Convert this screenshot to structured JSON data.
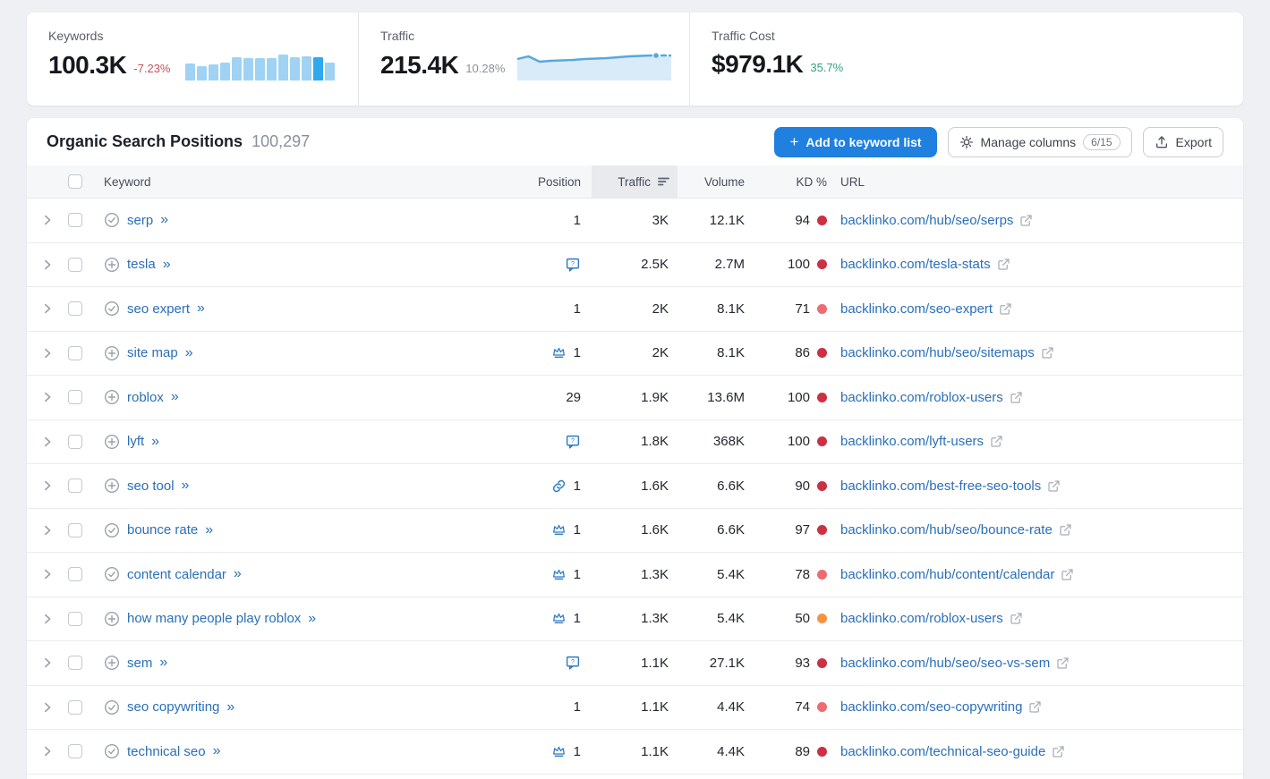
{
  "stats": {
    "keywords": {
      "label": "Keywords",
      "value": "100.3K",
      "change": "-7.23%",
      "chart_data": {
        "type": "bar",
        "values": [
          55,
          46,
          52,
          58,
          76,
          73,
          73,
          73,
          86,
          76,
          79,
          76,
          60
        ],
        "highlight_index": 11,
        "bar_color": "#9fd2f3",
        "highlight_color": "#2fa8ef"
      }
    },
    "traffic": {
      "label": "Traffic",
      "value": "215.4K",
      "change": "10.28%",
      "chart_data": {
        "type": "line",
        "values": [
          10,
          7,
          13,
          12,
          11.5,
          11,
          10,
          9.5,
          9,
          8,
          7,
          6.5,
          6
        ],
        "line_color": "#57a8de",
        "area_color": "#d9ebf8"
      }
    },
    "traffic_cost": {
      "label": "Traffic Cost",
      "value": "$979.1K",
      "change": "35.7%"
    }
  },
  "table": {
    "title": "Organic Search Positions",
    "count": "100,297",
    "buttons": {
      "add_label": "Add to keyword list",
      "add_plus": "+",
      "manage_label": "Manage columns",
      "manage_badge": "6/15",
      "export_label": "Export"
    },
    "columns": {
      "keyword": "Keyword",
      "position": "Position",
      "traffic": "Traffic",
      "volume": "Volume",
      "kd": "KD %",
      "url": "URL"
    },
    "rows": [
      {
        "keyword": "serp",
        "status_icon": "check-circle",
        "feature_icon": "",
        "position": "1",
        "traffic": "3K",
        "volume": "12.1K",
        "kd": "94",
        "kd_color": "#cb3043",
        "url": "backlinko.com/hub/seo/serps"
      },
      {
        "keyword": "tesla",
        "status_icon": "plus-circle",
        "feature_icon": "question-bubble",
        "position": "",
        "traffic": "2.5K",
        "volume": "2.7M",
        "kd": "100",
        "kd_color": "#cb3043",
        "url": "backlinko.com/tesla-stats"
      },
      {
        "keyword": "seo expert",
        "status_icon": "check-circle",
        "feature_icon": "",
        "position": "1",
        "traffic": "2K",
        "volume": "8.1K",
        "kd": "71",
        "kd_color": "#ee6b71",
        "url": "backlinko.com/seo-expert"
      },
      {
        "keyword": "site map",
        "status_icon": "plus-circle",
        "feature_icon": "crown",
        "position": "1",
        "traffic": "2K",
        "volume": "8.1K",
        "kd": "86",
        "kd_color": "#cb3043",
        "url": "backlinko.com/hub/seo/sitemaps"
      },
      {
        "keyword": "roblox",
        "status_icon": "plus-circle",
        "feature_icon": "",
        "position": "29",
        "traffic": "1.9K",
        "volume": "13.6M",
        "kd": "100",
        "kd_color": "#cb3043",
        "url": "backlinko.com/roblox-users"
      },
      {
        "keyword": "lyft",
        "status_icon": "plus-circle",
        "feature_icon": "question-bubble",
        "position": "",
        "traffic": "1.8K",
        "volume": "368K",
        "kd": "100",
        "kd_color": "#cb3043",
        "url": "backlinko.com/lyft-users"
      },
      {
        "keyword": "seo tool",
        "status_icon": "plus-circle",
        "feature_icon": "link",
        "position": "1",
        "traffic": "1.6K",
        "volume": "6.6K",
        "kd": "90",
        "kd_color": "#cb3043",
        "url": "backlinko.com/best-free-seo-tools"
      },
      {
        "keyword": "bounce rate",
        "status_icon": "check-circle",
        "feature_icon": "crown",
        "position": "1",
        "traffic": "1.6K",
        "volume": "6.6K",
        "kd": "97",
        "kd_color": "#cb3043",
        "url": "backlinko.com/hub/seo/bounce-rate"
      },
      {
        "keyword": "content calendar",
        "status_icon": "check-circle",
        "feature_icon": "crown",
        "position": "1",
        "traffic": "1.3K",
        "volume": "5.4K",
        "kd": "78",
        "kd_color": "#ee6b71",
        "url": "backlinko.com/hub/content/calendar"
      },
      {
        "keyword": "how many people play roblox",
        "status_icon": "plus-circle",
        "feature_icon": "crown",
        "position": "1",
        "traffic": "1.3K",
        "volume": "5.4K",
        "kd": "50",
        "kd_color": "#f59440",
        "url": "backlinko.com/roblox-users"
      },
      {
        "keyword": "sem",
        "status_icon": "plus-circle",
        "feature_icon": "question-bubble",
        "position": "",
        "traffic": "1.1K",
        "volume": "27.1K",
        "kd": "93",
        "kd_color": "#cb3043",
        "url": "backlinko.com/hub/seo/seo-vs-sem"
      },
      {
        "keyword": "seo copywriting",
        "status_icon": "check-circle",
        "feature_icon": "",
        "position": "1",
        "traffic": "1.1K",
        "volume": "4.4K",
        "kd": "74",
        "kd_color": "#ee6b71",
        "url": "backlinko.com/seo-copywriting"
      },
      {
        "keyword": "technical seo",
        "status_icon": "check-circle",
        "feature_icon": "crown",
        "position": "1",
        "traffic": "1.1K",
        "volume": "4.4K",
        "kd": "89",
        "kd_color": "#cb3043",
        "url": "backlinko.com/technical-seo-guide"
      }
    ]
  },
  "colors": {
    "accent_blue": "#1f80e0",
    "link_blue": "#2a6fb8",
    "feature_icon_blue": "#2f7bc4",
    "kd_hard": "#cb3043",
    "kd_medium_hard": "#ee6b71",
    "kd_possible": "#f59440"
  }
}
